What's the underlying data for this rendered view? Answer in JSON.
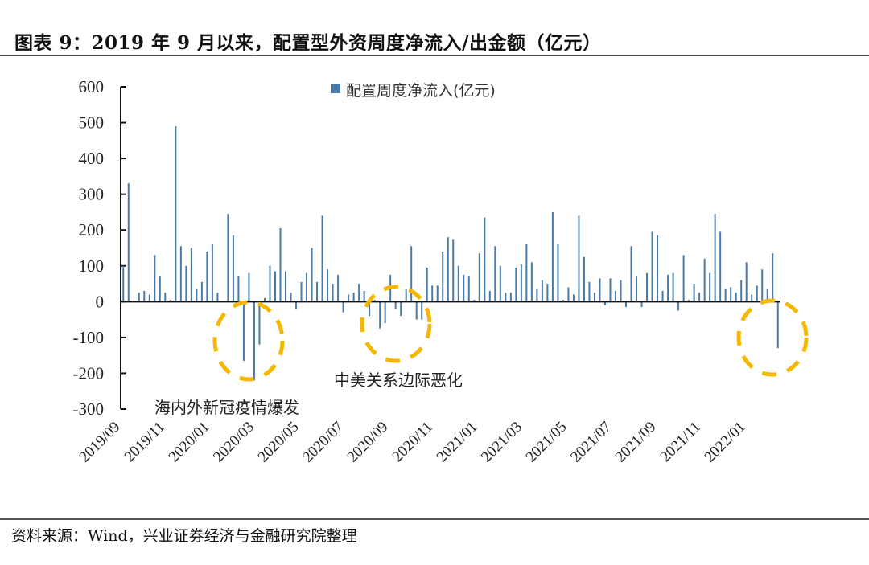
{
  "header": {
    "title": "图表 9：2019 年 9 月以来，配置型外资周度净流入/出金额（亿元）"
  },
  "footer": {
    "source": "资料来源：Wind，兴业证券经济与金融研究院整理"
  },
  "colors": {
    "bar": "#4a7aa8",
    "axis": "#111111",
    "highlight_circle": "#f5b800"
  },
  "chart_data": {
    "type": "bar",
    "title": "",
    "xlabel": "",
    "ylabel": "",
    "ylim": [
      -300,
      600
    ],
    "yticks": [
      600,
      500,
      400,
      300,
      200,
      100,
      0,
      -100,
      -200,
      -300
    ],
    "grid": false,
    "legend_position": "top-center",
    "x_tick_labels": [
      "2019/09",
      "2019/11",
      "2020/01",
      "2020/03",
      "2020/05",
      "2020/07",
      "2020/09",
      "2020/11",
      "2021/01",
      "2021/03",
      "2021/05",
      "2021/07",
      "2021/09",
      "2021/11",
      "2022/01"
    ],
    "series": [
      {
        "name": "配置周度净流入(亿元)",
        "values": [
          100,
          330,
          0,
          25,
          30,
          20,
          130,
          70,
          25,
          5,
          490,
          155,
          100,
          150,
          35,
          55,
          140,
          160,
          25,
          0,
          245,
          185,
          70,
          -165,
          80,
          -220,
          -120,
          10,
          100,
          85,
          205,
          85,
          25,
          -20,
          55,
          80,
          150,
          55,
          240,
          90,
          50,
          75,
          -30,
          20,
          25,
          50,
          30,
          -40,
          5,
          -75,
          -60,
          75,
          -20,
          -40,
          35,
          155,
          -50,
          -50,
          95,
          45,
          45,
          140,
          180,
          175,
          100,
          75,
          70,
          5,
          135,
          235,
          30,
          155,
          100,
          25,
          25,
          95,
          105,
          160,
          110,
          35,
          60,
          50,
          250,
          160,
          5,
          40,
          20,
          240,
          125,
          55,
          25,
          65,
          -10,
          65,
          30,
          60,
          -15,
          155,
          70,
          -15,
          80,
          195,
          185,
          30,
          75,
          80,
          -25,
          130,
          5,
          50,
          25,
          120,
          80,
          245,
          195,
          35,
          40,
          25,
          60,
          110,
          20,
          45,
          90,
          35,
          135,
          -130
        ]
      }
    ],
    "annotations": [
      {
        "text": "海内外新冠疫情爆发",
        "near": "2020/02"
      },
      {
        "text": "中美关系边际恶化",
        "near": "2020/09"
      }
    ],
    "highlight_regions": [
      "2020/02-2020/03",
      "2020/08-2020/10",
      "2022/03"
    ]
  }
}
